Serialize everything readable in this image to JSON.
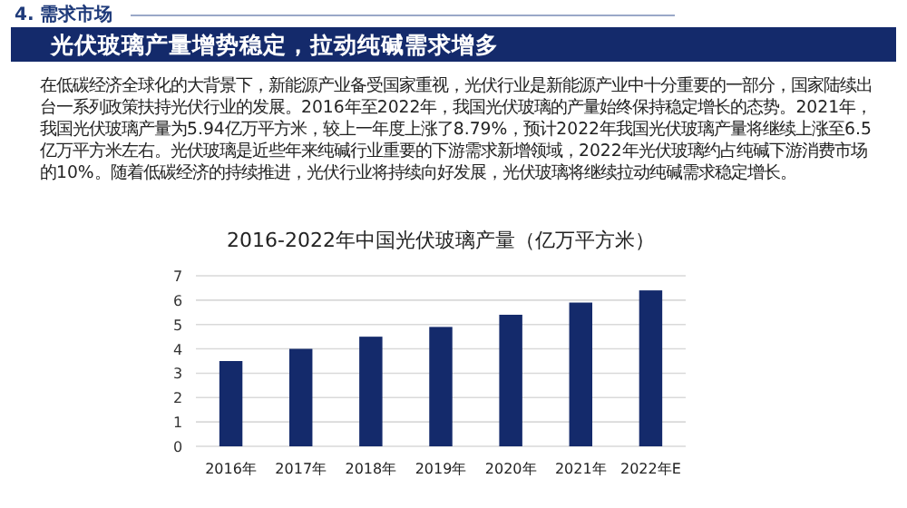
{
  "chart_data": {
    "type": "bar",
    "title": "2016-2022年中国光伏玻璃产量（亿万平方米）",
    "categories": [
      "2016年",
      "2017年",
      "2018年",
      "2019年",
      "2020年",
      "2021年",
      "2022年E"
    ],
    "values": [
      3.5,
      4.0,
      4.5,
      4.9,
      5.4,
      5.9,
      6.4
    ],
    "color": "#142a6b",
    "ylim": [
      0,
      7
    ],
    "yticks": [
      0,
      1,
      2,
      3,
      4,
      5,
      6,
      7
    ],
    "grid": "y",
    "annotations": [
      "4. 需求市场",
      "光伏玻璃产量增势稳定，拉动纯碱需求增多",
      "在低碳经济全球化的大背景下，新能源产业备受国家重视，光伏行业是新能源产业中十分重要的一部分，国家陆续出台一系列政策扶持光伏行业的发展。2016年至2022年，我国光伏玻璃的产量始终保持稳定增长的态势。2021年，我国光伏玻璃产量为5.94亿万平方米，较上一年度上涨了8.79%，预计2022年我国光伏玻璃产量将继续上涨至6.5亿万平方米左右。光伏玻璃是近些年来纯碱行业重要的下游需求新增领域，2022年光伏玻璃约占纯碱下游消费市场的10%。随着低碳经济的持续推进，光伏行业将持续向好发展，光伏玻璃将继续拉动纯碱需求稳定增长。"
    ]
  }
}
